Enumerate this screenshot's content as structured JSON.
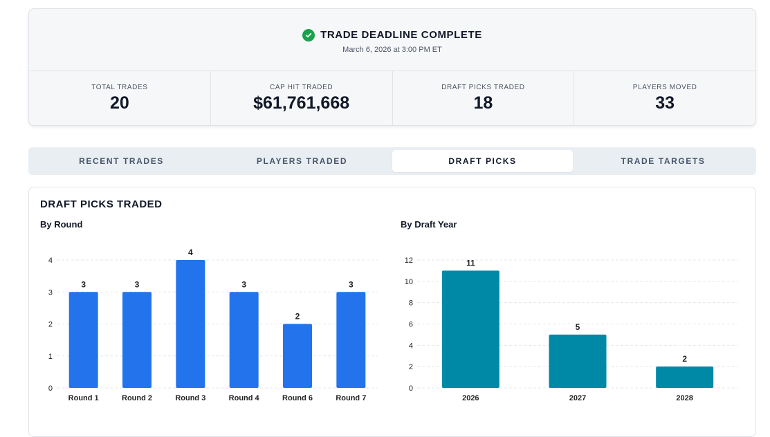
{
  "header": {
    "title": "TRADE DEADLINE COMPLETE",
    "subtitle": "March 6, 2026 at 3:00 PM ET",
    "status_icon": "check-circle-icon",
    "status_color": "#16a34a"
  },
  "stats": [
    {
      "label": "TOTAL TRADES",
      "value": "20"
    },
    {
      "label": "CAP HIT TRADED",
      "value": "$61,761,668"
    },
    {
      "label": "DRAFT PICKS TRADED",
      "value": "18"
    },
    {
      "label": "PLAYERS MOVED",
      "value": "33"
    }
  ],
  "tabs": [
    {
      "label": "RECENT TRADES",
      "active": false
    },
    {
      "label": "PLAYERS TRADED",
      "active": false
    },
    {
      "label": "DRAFT PICKS",
      "active": true
    },
    {
      "label": "TRADE TARGETS",
      "active": false
    }
  ],
  "panel": {
    "title": "DRAFT PICKS TRADED"
  },
  "chart_data": [
    {
      "type": "bar",
      "title": "By Round",
      "categories": [
        "Round 1",
        "Round 2",
        "Round 3",
        "Round 4",
        "Round 6",
        "Round 7"
      ],
      "values": [
        3,
        3,
        4,
        3,
        2,
        3
      ],
      "ylim": [
        0,
        4
      ],
      "yticks": [
        0,
        1,
        2,
        3,
        4
      ],
      "color": "#2374ec",
      "grid": true,
      "data_labels": true
    },
    {
      "type": "bar",
      "title": "By Draft Year",
      "categories": [
        "2026",
        "2027",
        "2028"
      ],
      "values": [
        11,
        5,
        2
      ],
      "ylim": [
        0,
        12
      ],
      "yticks": [
        0,
        2,
        4,
        6,
        8,
        10,
        12
      ],
      "color": "#0089a6",
      "grid": true,
      "data_labels": true
    }
  ]
}
